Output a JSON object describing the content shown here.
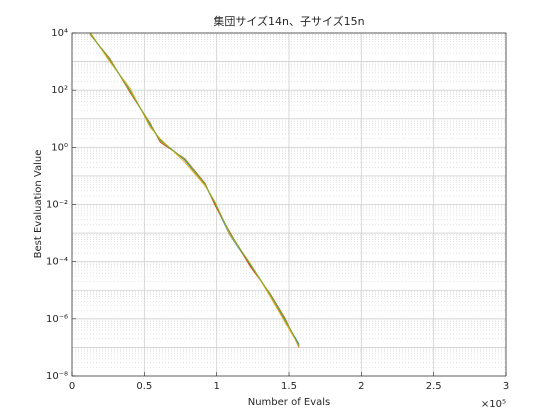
{
  "chart_data": {
    "type": "line",
    "title": "集団サイズ14n、子サイズ15n",
    "x_label": "Number of Evals",
    "y_label": "Best Evaluation Value",
    "x_multiplier": "×10⁵",
    "x": [
      0.124,
      0.26,
      0.4,
      0.54,
      0.61,
      0.78,
      0.92,
      0.99,
      1.09,
      1.23,
      1.37,
      1.47,
      1.57
    ],
    "series": [
      {
        "color": "#0072bd",
        "values": [
          10000,
          1150,
          100,
          6,
          1.8,
          0.36,
          0.049,
          0.01,
          0.00087,
          8e-05,
          6.9e-06,
          9.3e-07,
          1.26e-07
        ]
      },
      {
        "color": "#d95319",
        "values": [
          9000,
          1300,
          85,
          7,
          1.5,
          0.4,
          0.055,
          0.009,
          0.0011,
          7e-05,
          7.5e-06,
          1.1e-06,
          1e-07
        ]
      },
      {
        "color": "#edb120",
        "values": [
          11000,
          1000,
          120,
          5,
          2,
          0.3,
          0.045,
          0.012,
          0.0009,
          9e-05,
          6e-06,
          8e-07,
          1.1e-07
        ]
      },
      {
        "color": "#77ac30",
        "values": [
          9500,
          1200,
          95,
          6.5,
          1.7,
          0.38,
          0.05,
          0.011,
          0.001,
          8.5e-05,
          7.2e-06,
          1e-06,
          1.15e-07
        ]
      }
    ],
    "xlim": [
      0,
      3
    ],
    "xticks": [
      0,
      0.5,
      1,
      1.5,
      2,
      2.5,
      3
    ],
    "ylim": [
      1e-08,
      10000
    ],
    "yticks": [
      {
        "value": 1e-08,
        "label": "10⁻⁸"
      },
      {
        "value": 1e-06,
        "label": "10⁻⁶"
      },
      {
        "value": 0.0001,
        "label": "10⁻⁴"
      },
      {
        "value": 0.01,
        "label": "10⁻²"
      },
      {
        "value": 1,
        "label": "10⁰"
      },
      {
        "value": 100,
        "label": "10²"
      },
      {
        "value": 10000,
        "label": "10⁴"
      }
    ],
    "y_log": true,
    "grid": true,
    "minor_grid": true
  }
}
